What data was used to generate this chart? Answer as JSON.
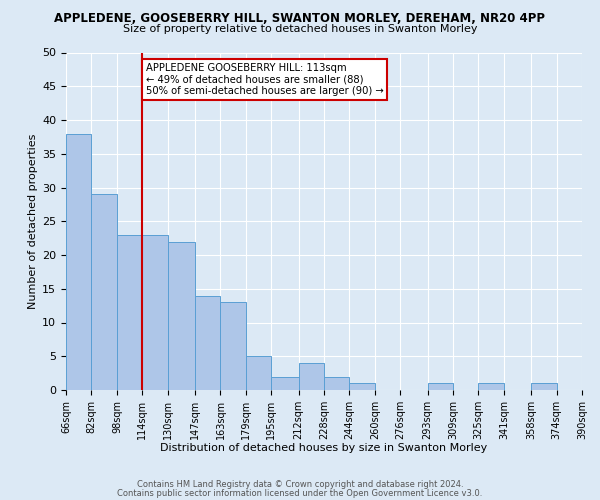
{
  "title": "APPLEDENE, GOOSEBERRY HILL, SWANTON MORLEY, DEREHAM, NR20 4PP",
  "subtitle": "Size of property relative to detached houses in Swanton Morley",
  "xlabel": "Distribution of detached houses by size in Swanton Morley",
  "ylabel": "Number of detached properties",
  "bin_labels": [
    "66sqm",
    "82sqm",
    "98sqm",
    "114sqm",
    "130sqm",
    "147sqm",
    "163sqm",
    "179sqm",
    "195sqm",
    "212sqm",
    "228sqm",
    "244sqm",
    "260sqm",
    "276sqm",
    "293sqm",
    "309sqm",
    "325sqm",
    "341sqm",
    "358sqm",
    "374sqm",
    "390sqm"
  ],
  "bin_edges": [
    66,
    82,
    98,
    114,
    130,
    147,
    163,
    179,
    195,
    212,
    228,
    244,
    260,
    276,
    293,
    309,
    325,
    341,
    358,
    374,
    390
  ],
  "bar_heights": [
    38,
    29,
    23,
    23,
    22,
    14,
    13,
    5,
    2,
    4,
    2,
    1,
    0,
    0,
    1,
    0,
    1,
    0,
    1,
    0,
    0
  ],
  "bar_color": "#aec6e8",
  "bar_edge_color": "#5a9fd4",
  "vline_x": 114,
  "vline_color": "#cc0000",
  "annotation_text": "APPLEDENE GOOSEBERRY HILL: 113sqm\n← 49% of detached houses are smaller (88)\n50% of semi-detached houses are larger (90) →",
  "annotation_box_color": "#ffffff",
  "annotation_box_edge_color": "#cc0000",
  "ylim": [
    0,
    50
  ],
  "yticks": [
    0,
    5,
    10,
    15,
    20,
    25,
    30,
    35,
    40,
    45,
    50
  ],
  "background_color": "#dce9f5",
  "plot_bg_color": "#dce9f5",
  "grid_color": "#ffffff",
  "footer1": "Contains HM Land Registry data © Crown copyright and database right 2024.",
  "footer2": "Contains public sector information licensed under the Open Government Licence v3.0."
}
